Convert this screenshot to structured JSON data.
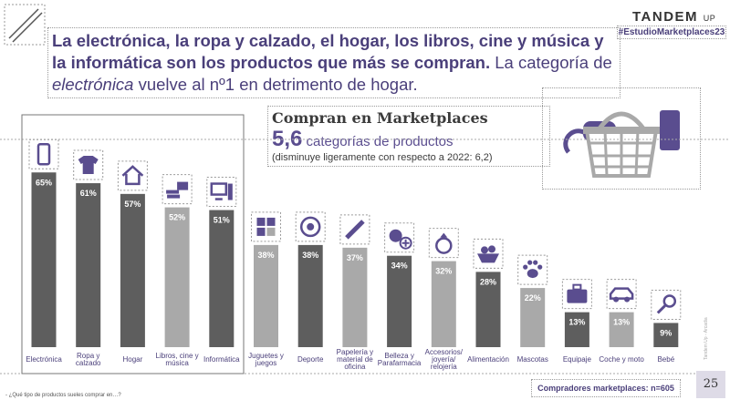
{
  "headline": {
    "bold_part": "La electrónica, la ropa y calzado, el hogar, los libros, cine y música y la informática son los productos que más se compran.",
    "normal_part": " La categoría de ",
    "italic_part": "electrónica",
    "end_part": " vuelve al nº1 en detrimento de hogar."
  },
  "brand": {
    "name": "TANDEM",
    "suffix": "UP"
  },
  "hashtag": "#EstudioMarketplaces23",
  "stat": {
    "title": "Compran en Marketplaces",
    "number": "5,6",
    "text": " categorías de productos",
    "note": "(disminuye ligeramente con respecto a 2022: 6,2)"
  },
  "sample_note": "Compradores marketplaces: n=605",
  "page_number": "25",
  "footnote": "- ¿Qué tipo de productos sueles comprar en…?",
  "side_note": "Tandem Up - Arcadia",
  "colors": {
    "dark_bar": "#5e5e5e",
    "light_bar": "#a9a9a9",
    "purple": "#4a3f7a",
    "icon_purple": "#5a4d8f"
  },
  "chart_data": {
    "type": "bar",
    "unit": "%",
    "categories": [
      "Electrónica",
      "Ropa y calzado",
      "Hogar",
      "Libros, cine y música",
      "Informática",
      "Juguetes y juegos",
      "Deporte",
      "Papelería y material de oficina",
      "Belleza y Parafarmacia",
      "Accesorios/ joyería/ relojería",
      "Alimentación",
      "Mascotas",
      "Equipaje",
      "Coche y moto",
      "Bebé"
    ],
    "category_lines": [
      [
        "Electrónica"
      ],
      [
        "Ropa y",
        "calzado"
      ],
      [
        "Hogar"
      ],
      [
        "Libros, cine y",
        "música"
      ],
      [
        "Informática"
      ],
      [
        "Juguetes y",
        "juegos"
      ],
      [
        "Deporte"
      ],
      [
        "Papelería y",
        "material de",
        "oficina"
      ],
      [
        "Belleza y",
        "Parafarmacia"
      ],
      [
        "Accesorios/",
        "joyería/",
        "relojería"
      ],
      [
        "Alimentación"
      ],
      [
        "Mascotas"
      ],
      [
        "Equipaje"
      ],
      [
        "Coche y moto"
      ],
      [
        "Bebé"
      ]
    ],
    "values": [
      65,
      61,
      57,
      52,
      51,
      38,
      38,
      37,
      34,
      32,
      28,
      22,
      13,
      13,
      9
    ],
    "shades": [
      "dark",
      "dark",
      "dark",
      "light",
      "dark",
      "light",
      "dark",
      "light",
      "dark",
      "light",
      "dark",
      "light",
      "dark",
      "light",
      "dark"
    ],
    "icons": [
      "smartphone-icon",
      "tshirt-icon",
      "house-icon",
      "books-film-icon",
      "computer-icon",
      "puzzle-icon",
      "soccer-ball-icon",
      "pencil-icon",
      "cosmetics-icon",
      "ring-icon",
      "food-basket-icon",
      "paw-icon",
      "suitcase-icon",
      "car-icon",
      "rattle-icon"
    ],
    "ylim": [
      0,
      70
    ],
    "grid": false,
    "legend": "none"
  }
}
